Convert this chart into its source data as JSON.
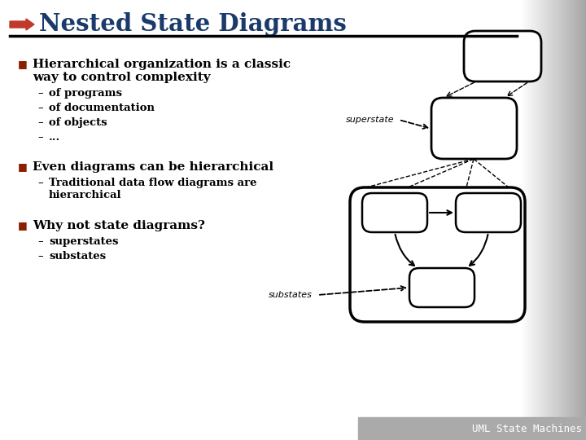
{
  "title": "Nested State Diagrams",
  "title_color": "#1a3a6b",
  "arrow_color": "#c0392b",
  "slide_bg": "#ffffff",
  "bullet_color": "#8b2000",
  "bullets": [
    {
      "main": "Hierarchical organization is a classic\nway to control complexity",
      "subs": [
        "of programs",
        "of documentation",
        "of objects",
        "..."
      ]
    },
    {
      "main": "Even diagrams can be hierarchical",
      "subs": [
        "Traditional data flow diagrams are\nhierarchical"
      ]
    },
    {
      "main": "Why not state diagrams?",
      "subs": [
        "superstates",
        "substates"
      ]
    }
  ],
  "footer": "UML State Machines",
  "footer_color": "#ffffff",
  "footer_bg": "#aaaaaa",
  "grad_start": "#ffffff",
  "grad_end": "#b0b0b0"
}
